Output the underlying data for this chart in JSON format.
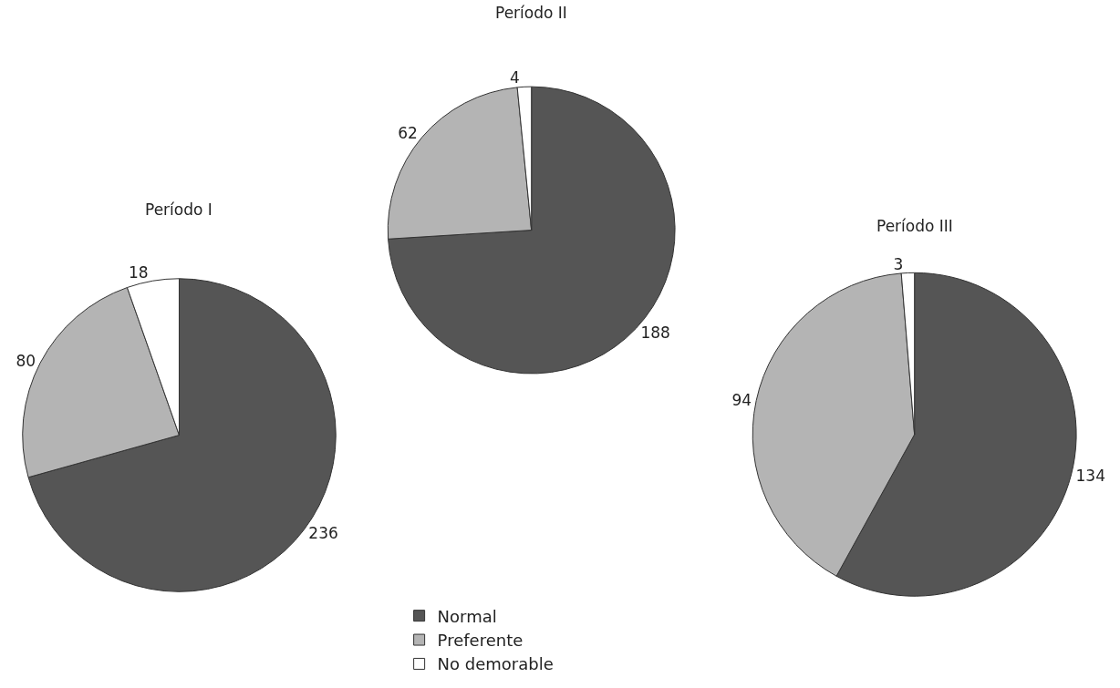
{
  "chart_data": [
    {
      "type": "pie",
      "title": "Período I",
      "categories": [
        null,
        null,
        null
      ],
      "values": [
        236,
        80,
        18
      ],
      "colors": [
        "#555555",
        "#b4b4b4",
        "#ffffff"
      ],
      "data_labels": true
    },
    {
      "type": "pie",
      "title": "Período II",
      "categories": [
        "Normal",
        "Preferente",
        "No demorable"
      ],
      "values": [
        188,
        62,
        4
      ],
      "colors": [
        "#555555",
        "#b4b4b4",
        "#ffffff"
      ],
      "data_labels": true,
      "legend": "bottom"
    },
    {
      "type": "pie",
      "title": "Período III",
      "categories": [
        null,
        null,
        null
      ],
      "values": [
        134,
        94,
        3
      ],
      "colors": [
        "#555555",
        "#b4b4b4",
        "#ffffff"
      ],
      "data_labels": true
    }
  ]
}
